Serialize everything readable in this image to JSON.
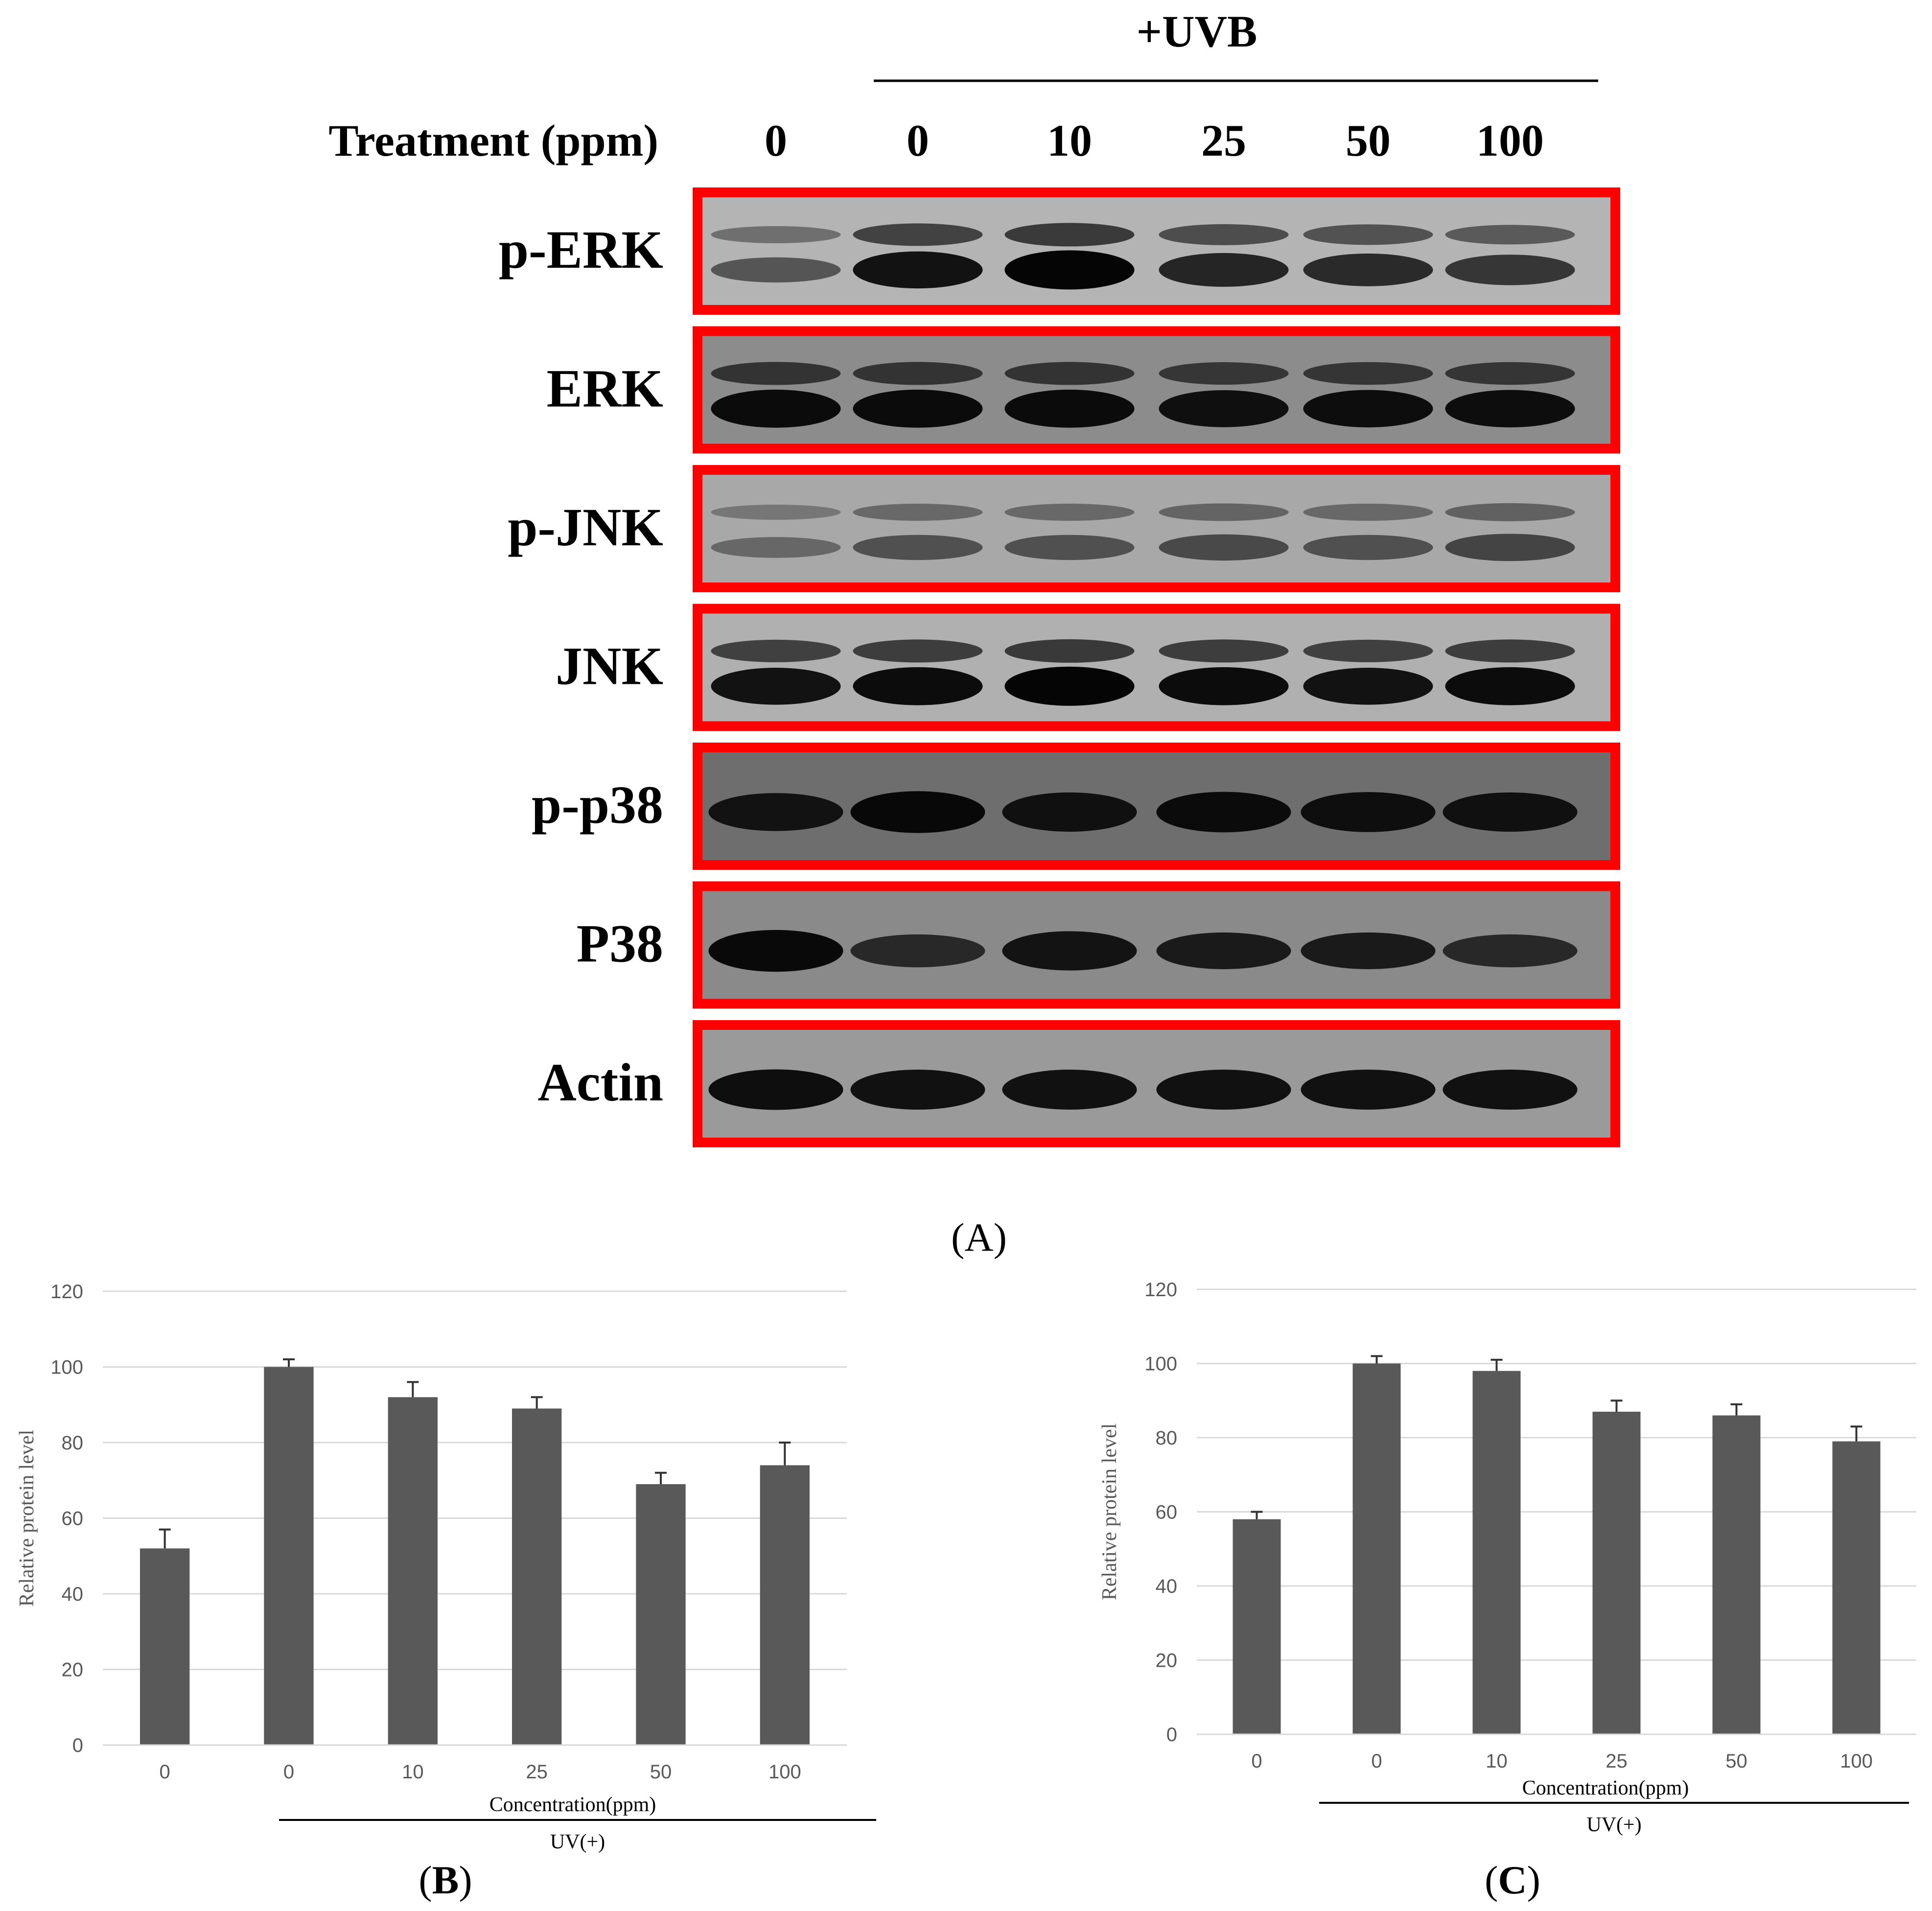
{
  "panel_a": {
    "uvb_label": "+UVB",
    "treatment_label": "Treatment (ppm)",
    "lane_labels": [
      "0",
      "0",
      "10",
      "25",
      "50",
      "100"
    ],
    "blot_rows": [
      {
        "label": "p-ERK",
        "bg": "#b4b4b4",
        "band_intensity": [
          0.35,
          0.9,
          1.0,
          0.75,
          0.7,
          0.6
        ]
      },
      {
        "label": "ERK",
        "bg": "#8c8c8c",
        "band_intensity": [
          0.95,
          0.95,
          0.95,
          0.9,
          0.92,
          0.92
        ]
      },
      {
        "label": "p-JNK",
        "bg": "#a8a8a8",
        "band_intensity": [
          0.15,
          0.35,
          0.35,
          0.4,
          0.35,
          0.45
        ]
      },
      {
        "label": "JNK",
        "bg": "#b0b0b0",
        "band_intensity": [
          0.9,
          0.95,
          1.0,
          0.95,
          0.9,
          0.95
        ]
      },
      {
        "label": "p-p38",
        "bg": "#6e6e6e",
        "band_intensity": [
          0.8,
          0.95,
          0.85,
          0.9,
          0.88,
          0.85
        ]
      },
      {
        "label": "P38",
        "bg": "#8a8a8a",
        "band_intensity": [
          0.95,
          0.6,
          0.85,
          0.75,
          0.75,
          0.6
        ]
      },
      {
        "label": "Actin",
        "bg": "#9a9a9a",
        "band_intensity": [
          0.9,
          0.88,
          0.88,
          0.88,
          0.88,
          0.88
        ]
      }
    ],
    "box_color": "#ff0000",
    "caption": "(A)"
  },
  "chart_data": [
    {
      "type": "bar",
      "panel": "B",
      "caption": "(B)",
      "categories": [
        "0",
        "0",
        "10",
        "25",
        "50",
        "100"
      ],
      "values": [
        52,
        100,
        92,
        89,
        69,
        74
      ],
      "errors": [
        5,
        2,
        4,
        3,
        3,
        6
      ],
      "ylabel": "Relative protein level",
      "xlabel": "Concentration(ppm)",
      "group_label": "UV(+)",
      "ylim": [
        0,
        120
      ],
      "yticks": [
        0,
        20,
        40,
        60,
        80,
        100,
        120
      ],
      "grid": true,
      "bar_color": "#595959"
    },
    {
      "type": "bar",
      "panel": "C",
      "caption": "(C)",
      "categories": [
        "0",
        "0",
        "10",
        "25",
        "50",
        "100"
      ],
      "values": [
        58,
        100,
        98,
        87,
        86,
        79
      ],
      "errors": [
        2,
        2,
        3,
        3,
        3,
        4
      ],
      "ylabel": "Relative protein level",
      "xlabel": "Concentration(ppm)",
      "group_label": "UV(+)",
      "ylim": [
        0,
        120
      ],
      "yticks": [
        0,
        20,
        40,
        60,
        80,
        100,
        120
      ],
      "grid": true,
      "bar_color": "#595959"
    }
  ]
}
